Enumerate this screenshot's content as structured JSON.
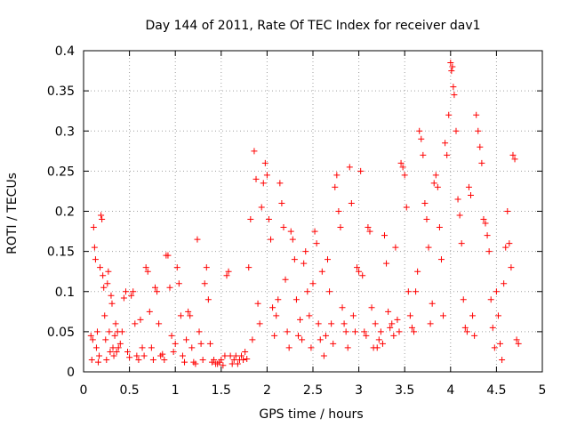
{
  "chart_data": {
    "type": "scatter",
    "title": "Day 144 of 2011, Rate Of TEC Index for receiver dav1",
    "xlabel": "GPS time / hours",
    "ylabel": "ROTI / TECUs",
    "xlim": [
      0,
      5
    ],
    "ylim": [
      0,
      0.4
    ],
    "x_ticks": [
      0,
      0.5,
      1,
      1.5,
      2,
      2.5,
      3,
      3.5,
      4,
      4.5,
      5
    ],
    "x_tick_labels": [
      "0",
      "0.5",
      "1",
      "1.5",
      "2",
      "2.5",
      "3",
      "3.5",
      "4",
      "4.5",
      "5"
    ],
    "y_ticks": [
      0,
      0.05,
      0.1,
      0.15,
      0.2,
      0.25,
      0.3,
      0.35,
      0.4
    ],
    "y_tick_labels": [
      "0",
      "0.05",
      "0.1",
      "0.15",
      "0.2",
      "0.25",
      "0.3",
      "0.35",
      "0.4"
    ],
    "grid": true,
    "marker": "plus",
    "color": "#ff0000",
    "series": [
      {
        "points": [
          [
            0.08,
            0.045
          ],
          [
            0.09,
            0.015
          ],
          [
            0.1,
            0.04
          ],
          [
            0.11,
            0.18
          ],
          [
            0.12,
            0.155
          ],
          [
            0.13,
            0.14
          ],
          [
            0.14,
            0.03
          ],
          [
            0.15,
            0.05
          ],
          [
            0.16,
            0.012
          ],
          [
            0.17,
            0.02
          ],
          [
            0.18,
            0.13
          ],
          [
            0.19,
            0.195
          ],
          [
            0.2,
            0.19
          ],
          [
            0.21,
            0.12
          ],
          [
            0.22,
            0.105
          ],
          [
            0.23,
            0.07
          ],
          [
            0.24,
            0.04
          ],
          [
            0.25,
            0.015
          ],
          [
            0.26,
            0.11
          ],
          [
            0.27,
            0.125
          ],
          [
            0.28,
            0.05
          ],
          [
            0.29,
            0.025
          ],
          [
            0.3,
            0.095
          ],
          [
            0.31,
            0.085
          ],
          [
            0.32,
            0.03
          ],
          [
            0.33,
            0.02
          ],
          [
            0.34,
            0.045
          ],
          [
            0.35,
            0.06
          ],
          [
            0.36,
            0.025
          ],
          [
            0.37,
            0.05
          ],
          [
            0.38,
            0.03
          ],
          [
            0.4,
            0.035
          ],
          [
            0.42,
            0.05
          ],
          [
            0.44,
            0.092
          ],
          [
            0.46,
            0.1
          ],
          [
            0.48,
            0.025
          ],
          [
            0.5,
            0.018
          ],
          [
            0.52,
            0.095
          ],
          [
            0.54,
            0.1
          ],
          [
            0.56,
            0.06
          ],
          [
            0.58,
            0.02
          ],
          [
            0.6,
            0.015
          ],
          [
            0.62,
            0.065
          ],
          [
            0.64,
            0.03
          ],
          [
            0.66,
            0.02
          ],
          [
            0.68,
            0.13
          ],
          [
            0.7,
            0.125
          ],
          [
            0.72,
            0.075
          ],
          [
            0.74,
            0.03
          ],
          [
            0.76,
            0.015
          ],
          [
            0.78,
            0.105
          ],
          [
            0.8,
            0.1
          ],
          [
            0.82,
            0.06
          ],
          [
            0.84,
            0.02
          ],
          [
            0.86,
            0.022
          ],
          [
            0.88,
            0.015
          ],
          [
            0.9,
            0.145
          ],
          [
            0.92,
            0.145
          ],
          [
            0.94,
            0.105
          ],
          [
            0.96,
            0.045
          ],
          [
            0.98,
            0.025
          ],
          [
            1.0,
            0.035
          ],
          [
            1.02,
            0.13
          ],
          [
            1.04,
            0.11
          ],
          [
            1.06,
            0.07
          ],
          [
            1.08,
            0.02
          ],
          [
            1.1,
            0.012
          ],
          [
            1.12,
            0.04
          ],
          [
            1.14,
            0.075
          ],
          [
            1.16,
            0.07
          ],
          [
            1.18,
            0.03
          ],
          [
            1.2,
            0.012
          ],
          [
            1.22,
            0.01
          ],
          [
            1.24,
            0.165
          ],
          [
            1.26,
            0.05
          ],
          [
            1.28,
            0.035
          ],
          [
            1.3,
            0.015
          ],
          [
            1.32,
            0.11
          ],
          [
            1.34,
            0.13
          ],
          [
            1.36,
            0.09
          ],
          [
            1.38,
            0.035
          ],
          [
            1.4,
            0.012
          ],
          [
            1.42,
            0.015
          ],
          [
            1.44,
            0.01
          ],
          [
            1.46,
            0.01
          ],
          [
            1.48,
            0.012
          ],
          [
            1.5,
            0.015
          ],
          [
            1.52,
            0.008
          ],
          [
            1.54,
            0.02
          ],
          [
            1.56,
            0.12
          ],
          [
            1.58,
            0.125
          ],
          [
            1.6,
            0.02
          ],
          [
            1.62,
            0.01
          ],
          [
            1.64,
            0.015
          ],
          [
            1.66,
            0.02
          ],
          [
            1.68,
            0.01
          ],
          [
            1.7,
            0.015
          ],
          [
            1.72,
            0.02
          ],
          [
            1.74,
            0.015
          ],
          [
            1.76,
            0.025
          ],
          [
            1.78,
            0.016
          ],
          [
            1.8,
            0.13
          ],
          [
            1.82,
            0.19
          ],
          [
            1.84,
            0.04
          ],
          [
            1.86,
            0.275
          ],
          [
            1.88,
            0.24
          ],
          [
            1.9,
            0.085
          ],
          [
            1.92,
            0.06
          ],
          [
            1.94,
            0.205
          ],
          [
            1.96,
            0.235
          ],
          [
            1.98,
            0.26
          ],
          [
            2.0,
            0.245
          ],
          [
            2.02,
            0.19
          ],
          [
            2.04,
            0.165
          ],
          [
            2.06,
            0.08
          ],
          [
            2.08,
            0.045
          ],
          [
            2.1,
            0.07
          ],
          [
            2.12,
            0.09
          ],
          [
            2.14,
            0.235
          ],
          [
            2.16,
            0.21
          ],
          [
            2.18,
            0.18
          ],
          [
            2.2,
            0.115
          ],
          [
            2.22,
            0.05
          ],
          [
            2.24,
            0.03
          ],
          [
            2.26,
            0.175
          ],
          [
            2.28,
            0.165
          ],
          [
            2.3,
            0.14
          ],
          [
            2.32,
            0.09
          ],
          [
            2.34,
            0.045
          ],
          [
            2.36,
            0.065
          ],
          [
            2.38,
            0.04
          ],
          [
            2.4,
            0.135
          ],
          [
            2.42,
            0.15
          ],
          [
            2.44,
            0.1
          ],
          [
            2.46,
            0.07
          ],
          [
            2.48,
            0.03
          ],
          [
            2.5,
            0.11
          ],
          [
            2.52,
            0.175
          ],
          [
            2.54,
            0.16
          ],
          [
            2.56,
            0.06
          ],
          [
            2.58,
            0.04
          ],
          [
            2.6,
            0.125
          ],
          [
            2.62,
            0.02
          ],
          [
            2.64,
            0.045
          ],
          [
            2.66,
            0.14
          ],
          [
            2.68,
            0.1
          ],
          [
            2.7,
            0.06
          ],
          [
            2.72,
            0.035
          ],
          [
            2.74,
            0.23
          ],
          [
            2.76,
            0.245
          ],
          [
            2.78,
            0.2
          ],
          [
            2.8,
            0.18
          ],
          [
            2.82,
            0.08
          ],
          [
            2.84,
            0.06
          ],
          [
            2.86,
            0.05
          ],
          [
            2.88,
            0.03
          ],
          [
            2.9,
            0.255
          ],
          [
            2.92,
            0.21
          ],
          [
            2.94,
            0.07
          ],
          [
            2.96,
            0.05
          ],
          [
            2.98,
            0.13
          ],
          [
            3.0,
            0.125
          ],
          [
            3.02,
            0.25
          ],
          [
            3.04,
            0.12
          ],
          [
            3.06,
            0.05
          ],
          [
            3.08,
            0.045
          ],
          [
            3.1,
            0.18
          ],
          [
            3.12,
            0.175
          ],
          [
            3.14,
            0.08
          ],
          [
            3.16,
            0.03
          ],
          [
            3.18,
            0.06
          ],
          [
            3.2,
            0.03
          ],
          [
            3.22,
            0.04
          ],
          [
            3.24,
            0.05
          ],
          [
            3.26,
            0.035
          ],
          [
            3.28,
            0.17
          ],
          [
            3.3,
            0.135
          ],
          [
            3.32,
            0.075
          ],
          [
            3.34,
            0.055
          ],
          [
            3.36,
            0.06
          ],
          [
            3.38,
            0.045
          ],
          [
            3.4,
            0.155
          ],
          [
            3.42,
            0.065
          ],
          [
            3.44,
            0.05
          ],
          [
            3.46,
            0.26
          ],
          [
            3.48,
            0.255
          ],
          [
            3.5,
            0.245
          ],
          [
            3.52,
            0.205
          ],
          [
            3.54,
            0.1
          ],
          [
            3.56,
            0.07
          ],
          [
            3.58,
            0.055
          ],
          [
            3.6,
            0.05
          ],
          [
            3.62,
            0.1
          ],
          [
            3.64,
            0.125
          ],
          [
            3.66,
            0.3
          ],
          [
            3.68,
            0.29
          ],
          [
            3.7,
            0.27
          ],
          [
            3.72,
            0.21
          ],
          [
            3.74,
            0.19
          ],
          [
            3.76,
            0.155
          ],
          [
            3.78,
            0.06
          ],
          [
            3.8,
            0.085
          ],
          [
            3.82,
            0.235
          ],
          [
            3.84,
            0.245
          ],
          [
            3.86,
            0.23
          ],
          [
            3.88,
            0.18
          ],
          [
            3.9,
            0.14
          ],
          [
            3.92,
            0.07
          ],
          [
            3.94,
            0.285
          ],
          [
            3.96,
            0.27
          ],
          [
            3.98,
            0.32
          ],
          [
            4.0,
            0.385
          ],
          [
            4.01,
            0.375
          ],
          [
            4.02,
            0.38
          ],
          [
            4.03,
            0.355
          ],
          [
            4.04,
            0.345
          ],
          [
            4.06,
            0.3
          ],
          [
            4.08,
            0.215
          ],
          [
            4.1,
            0.195
          ],
          [
            4.12,
            0.16
          ],
          [
            4.14,
            0.09
          ],
          [
            4.16,
            0.055
          ],
          [
            4.18,
            0.05
          ],
          [
            4.2,
            0.23
          ],
          [
            4.22,
            0.22
          ],
          [
            4.24,
            0.07
          ],
          [
            4.26,
            0.045
          ],
          [
            4.28,
            0.32
          ],
          [
            4.3,
            0.3
          ],
          [
            4.32,
            0.28
          ],
          [
            4.34,
            0.26
          ],
          [
            4.36,
            0.19
          ],
          [
            4.38,
            0.185
          ],
          [
            4.4,
            0.17
          ],
          [
            4.42,
            0.15
          ],
          [
            4.44,
            0.09
          ],
          [
            4.46,
            0.055
          ],
          [
            4.48,
            0.03
          ],
          [
            4.5,
            0.1
          ],
          [
            4.52,
            0.07
          ],
          [
            4.54,
            0.035
          ],
          [
            4.56,
            0.015
          ],
          [
            4.58,
            0.11
          ],
          [
            4.6,
            0.155
          ],
          [
            4.62,
            0.2
          ],
          [
            4.64,
            0.16
          ],
          [
            4.66,
            0.13
          ],
          [
            4.68,
            0.27
          ],
          [
            4.7,
            0.265
          ],
          [
            4.72,
            0.04
          ],
          [
            4.74,
            0.035
          ]
        ]
      }
    ]
  }
}
